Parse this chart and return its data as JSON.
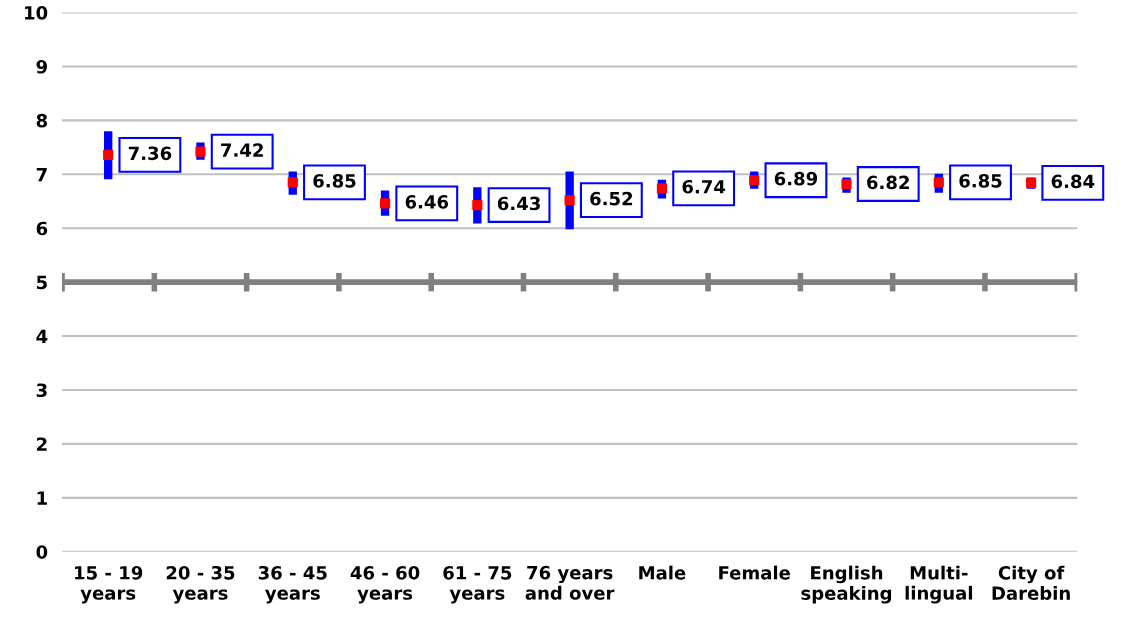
{
  "chart_data": {
    "type": "scatter",
    "categories": [
      "15 - 19\nyears",
      "20 - 35\nyears",
      "36 - 45\nyears",
      "46 - 60\nyears",
      "61 - 75\nyears",
      "76 years\nand over",
      "Male",
      "Female",
      "English\nspeaking",
      "Multi-\nlingual",
      "City of\nDarebin"
    ],
    "series": [
      {
        "color": "#ff0000",
        "values": [
          7.36,
          7.42,
          6.85,
          6.46,
          6.43,
          6.52,
          6.74,
          6.89,
          6.82,
          6.85,
          6.84
        ],
        "errors": [
          [
            6.91,
            7.8
          ],
          [
            7.27,
            7.59
          ],
          [
            6.62,
            7.05
          ],
          [
            6.23,
            6.7
          ],
          [
            6.09,
            6.76
          ],
          [
            5.98,
            7.05
          ],
          [
            6.55,
            6.9
          ],
          [
            6.73,
            7.05
          ],
          [
            6.66,
            6.94
          ],
          [
            6.66,
            7.01
          ],
          [
            6.73,
            6.94
          ]
        ]
      }
    ],
    "marker": "square",
    "data_labels": true,
    "ylim": [
      0,
      10
    ],
    "yticks": [
      0,
      1,
      2,
      3,
      4,
      5,
      6,
      7,
      8,
      9,
      10
    ],
    "grid": "y",
    "ref_lines": [
      {
        "axis": "y",
        "value": 5,
        "color": "#808080"
      }
    ]
  }
}
